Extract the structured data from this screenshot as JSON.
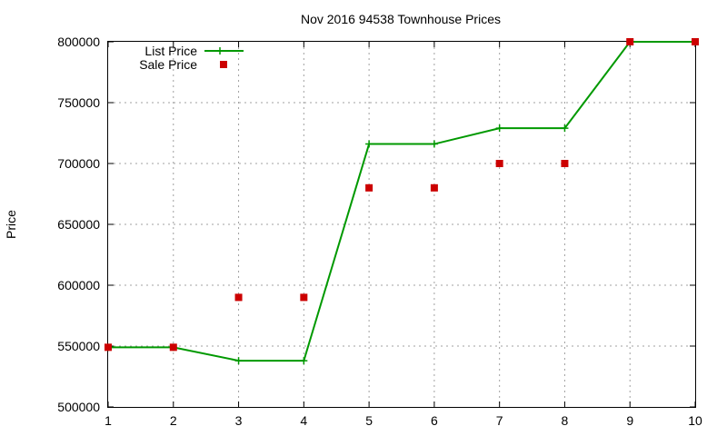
{
  "chart_data": {
    "type": "line",
    "title": "Nov 2016 94538 Townhouse Prices",
    "xlabel": "",
    "ylabel": "Price",
    "x": [
      1,
      2,
      3,
      4,
      5,
      6,
      7,
      8,
      9,
      10
    ],
    "xlim": [
      1,
      10
    ],
    "ylim": [
      500000,
      800000
    ],
    "x_ticks": [
      "1",
      "2",
      "3",
      "4",
      "5",
      "6",
      "7",
      "8",
      "9",
      "10"
    ],
    "y_ticks": [
      "500000",
      "550000",
      "600000",
      "650000",
      "700000",
      "750000",
      "800000"
    ],
    "grid": true,
    "legend_position": "top-left",
    "series": [
      {
        "name": "List Price",
        "style": "line-with-plus-markers",
        "color": "#009900",
        "values": [
          549000,
          549000,
          538000,
          538000,
          716000,
          716000,
          729000,
          729000,
          800000,
          800000
        ]
      },
      {
        "name": "Sale Price",
        "style": "square-points",
        "color": "#cc0000",
        "values": [
          549000,
          549000,
          590000,
          590000,
          680000,
          680000,
          700000,
          700000,
          800000,
          800000
        ]
      }
    ]
  }
}
